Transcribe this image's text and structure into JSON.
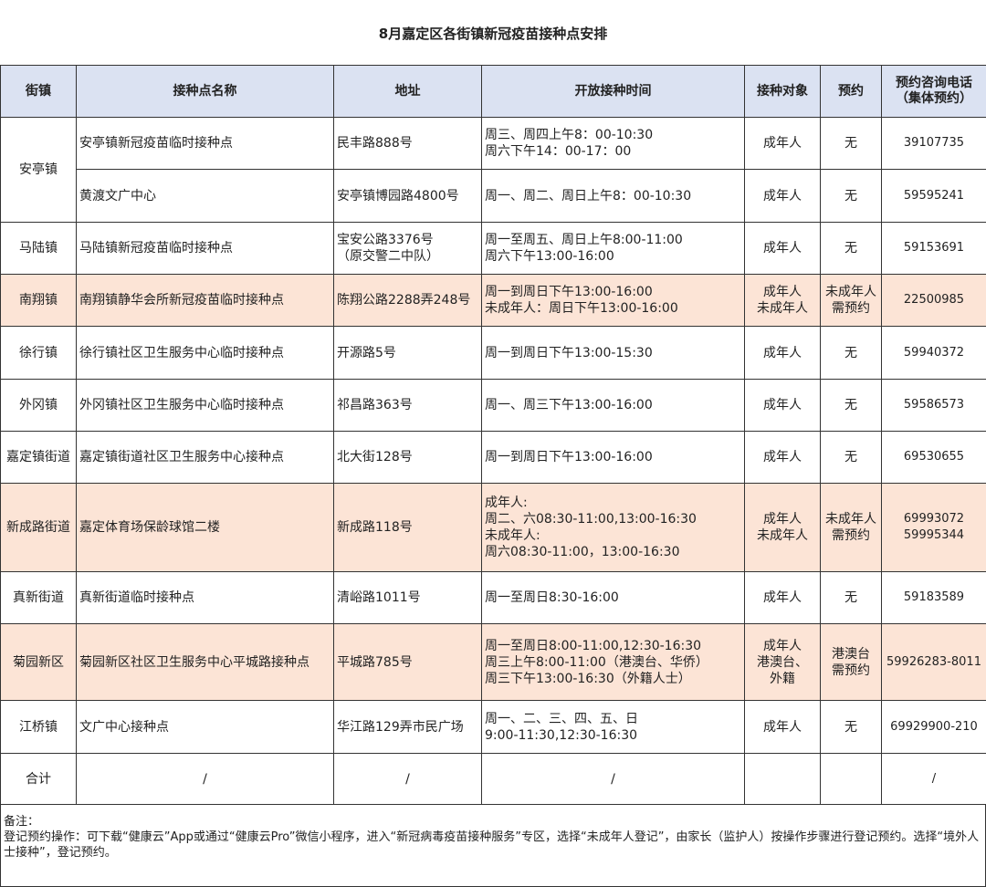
{
  "title": "8月嘉定区各街镇新冠疫苗接种点安排",
  "headers": [
    "街镇",
    "接种点名称",
    "地址",
    "开放接种时间",
    "接种对象",
    "预约",
    "预约咨询电话\n（集体预约）"
  ],
  "rows": [
    {
      "town": "安亭镇",
      "name": "安亭镇新冠疫苗临时接种点",
      "addr": "民丰路888号",
      "time": "周三、周四上午8：00-10:30\n周六下午14：00-17：00",
      "target": "成年人",
      "appt": "无",
      "phone": "39107735"
    },
    {
      "name": "黄渡文广中心",
      "addr": "安亭镇博园路4800号",
      "time": "周一、周二、周日上午8：00-10:30",
      "target": "成年人",
      "appt": "无",
      "phone": "59595241"
    },
    {
      "town": "马陆镇",
      "name": "马陆镇新冠疫苗临时接种点",
      "addr": "宝安公路3376号\n（原交警二中队）",
      "time": "周一至周五、周日上午8:00-11:00\n周六下午13:00-16:00",
      "target": "成年人",
      "appt": "无",
      "phone": "59153691"
    },
    {
      "town": "南翔镇",
      "name": "南翔镇静华会所新冠疫苗临时接种点",
      "addr": "陈翔公路2288弄248号",
      "time": "周一到周日下午13:00-16:00\n未成年人：周日下午13:00-16:00",
      "target": "成年人\n未成年人",
      "appt": "未成年人\n需预约",
      "phone": "22500985",
      "hl": true
    },
    {
      "town": "徐行镇",
      "name": "徐行镇社区卫生服务中心临时接种点",
      "addr": "开源路5号",
      "time": "周一到周日下午13:00-15:30",
      "target": "成年人",
      "appt": "无",
      "phone": "59940372"
    },
    {
      "town": "外冈镇",
      "name": "外冈镇社区卫生服务中心临时接种点",
      "addr": "祁昌路363号",
      "time": "周一、周三下午13:00-16:00",
      "target": "成年人",
      "appt": "无",
      "phone": "59586573"
    },
    {
      "town": "嘉定镇街道",
      "name": "嘉定镇街道社区卫生服务中心接种点",
      "addr": "北大街128号",
      "time": "周一到周日下午13:00-16:00",
      "target": "成年人",
      "appt": "无",
      "phone": "69530655"
    },
    {
      "town": "新成路街道",
      "name": "嘉定体育场保龄球馆二楼",
      "addr": "新成路118号",
      "time": "成年人:\n周二、六08:30-11:00,13:00-16:30\n未成年人:\n周六08:30-11:00，13:00-16:30",
      "target": "成年人\n未成年人",
      "appt": "未成年人\n需预约",
      "phone": "69993072\n59995344",
      "hl": true
    },
    {
      "town": "真新街道",
      "name": "真新街道临时接种点",
      "addr": "清峪路1011号",
      "time": "周一至周日8:30-16:00",
      "target": "成年人",
      "appt": "无",
      "phone": "59183589"
    },
    {
      "town": "菊园新区",
      "name": "菊园新区社区卫生服务中心平城路接种点",
      "addr": "平城路785号",
      "time": "周一至周日8:00-11:00,12:30-16:30\n周三上午8:00-11:00（港澳台、华侨）\n周三下午13:00-16:30（外籍人士）",
      "target": "成年人\n港澳台、\n外籍",
      "appt": "港澳台\n需预约",
      "phone": "59926283-8011",
      "hl": true
    },
    {
      "town": "江桥镇",
      "name": "文广中心接种点",
      "addr": "华江路129弄市民广场",
      "time": "周一、二、三、四、五、日\n9:00-11:30,12:30-16:30",
      "target": "成年人",
      "appt": "无",
      "phone": "69929900-210"
    },
    {
      "town": "合计",
      "name": "/",
      "addr": "/",
      "time": "/",
      "target": "",
      "appt": "",
      "phone": "/"
    }
  ],
  "notes": {
    "label": "备注：",
    "text": "登记预约操作：可下载“健康云”App或通过“健康云Pro”微信小程序，进入“新冠病毒疫苗接种服务”专区，选择“未成年人登记”，由家长（监护人）按操作步骤进行登记预约。选择“境外人士接种”，登记预约。"
  }
}
